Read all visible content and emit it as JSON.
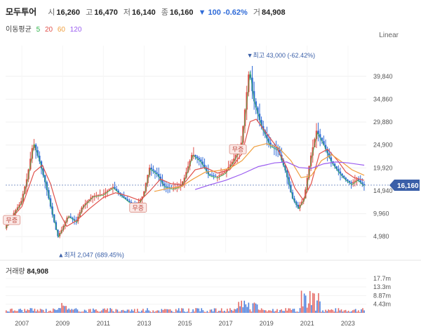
{
  "header": {
    "name": "모두투어",
    "open_label": "시",
    "open": "16,260",
    "high_label": "고",
    "high": "16,470",
    "low_label": "저",
    "low": "16,140",
    "close_label": "종",
    "close": "16,160",
    "change": "▼ 100 -0.62%",
    "volume_label": "거",
    "volume": "84,908"
  },
  "ma_legend": {
    "label": "이동평균",
    "periods": [
      {
        "text": "5",
        "color": "#2fb34a"
      },
      {
        "text": "20",
        "color": "#e0514b"
      },
      {
        "text": "60",
        "color": "#f0a040"
      },
      {
        "text": "120",
        "color": "#9a5cf0"
      }
    ]
  },
  "scale_label": "Linear",
  "volume_panel": {
    "label": "거래량",
    "value": "84,908"
  },
  "colors": {
    "up": "#e0514b",
    "down": "#2f6bd8",
    "ma5": "#2fb34a",
    "ma20": "#e0514b",
    "ma60": "#f0a040",
    "ma120": "#9a5cf0"
  },
  "chart_data": {
    "type": "candlestick",
    "price_axis": {
      "ticks": [
        "39,840",
        "34,860",
        "29,880",
        "24,900",
        "19,920",
        "14,940",
        "9,960",
        "4,980"
      ],
      "range": [
        1500,
        45000
      ]
    },
    "x_axis": {
      "ticks": [
        "2007",
        "2009",
        "2011",
        "2013",
        "2015",
        "2017",
        "2019",
        "2021",
        "2023"
      ],
      "range": [
        2006.2,
        2023.9
      ]
    },
    "current_price": "16,160",
    "annotations": {
      "high": {
        "text": "▼최고 43,000 (-62.42%)",
        "x": 2018.1,
        "y": 43000
      },
      "low": {
        "text": "▲최저 2,047 (689.45%)",
        "x": 2008.9,
        "y": 2047
      }
    },
    "markers": [
      {
        "text": "무증",
        "x": 2006.5,
        "y": 8500
      },
      {
        "text": "무증",
        "x": 2012.7,
        "y": 11200
      },
      {
        "text": "무증",
        "x": 2017.6,
        "y": 23900
      }
    ],
    "price_path": [
      [
        2006.2,
        6800
      ],
      [
        2006.6,
        9800
      ],
      [
        2007.0,
        12500
      ],
      [
        2007.3,
        17800
      ],
      [
        2007.6,
        25500
      ],
      [
        2007.9,
        21500
      ],
      [
        2008.2,
        16500
      ],
      [
        2008.5,
        10500
      ],
      [
        2008.8,
        5000
      ],
      [
        2009.0,
        6500
      ],
      [
        2009.3,
        9500
      ],
      [
        2009.7,
        8200
      ],
      [
        2010.0,
        11500
      ],
      [
        2010.5,
        13800
      ],
      [
        2011.0,
        14200
      ],
      [
        2011.5,
        15800
      ],
      [
        2011.9,
        14000
      ],
      [
        2012.3,
        12500
      ],
      [
        2012.7,
        12000
      ],
      [
        2013.0,
        14000
      ],
      [
        2013.3,
        20000
      ],
      [
        2013.7,
        18500
      ],
      [
        2014.0,
        16000
      ],
      [
        2014.4,
        15500
      ],
      [
        2014.8,
        16000
      ],
      [
        2015.0,
        17500
      ],
      [
        2015.4,
        23000
      ],
      [
        2015.8,
        21500
      ],
      [
        2016.2,
        18500
      ],
      [
        2016.6,
        18000
      ],
      [
        2017.0,
        19000
      ],
      [
        2017.4,
        21500
      ],
      [
        2017.8,
        25000
      ],
      [
        2018.0,
        33000
      ],
      [
        2018.2,
        41500
      ],
      [
        2018.4,
        35000
      ],
      [
        2018.8,
        29000
      ],
      [
        2019.2,
        25000
      ],
      [
        2019.6,
        24000
      ],
      [
        2020.0,
        19000
      ],
      [
        2020.3,
        13500
      ],
      [
        2020.6,
        11200
      ],
      [
        2020.9,
        13500
      ],
      [
        2021.2,
        22000
      ],
      [
        2021.5,
        28000
      ],
      [
        2021.8,
        25500
      ],
      [
        2022.2,
        21500
      ],
      [
        2022.6,
        19000
      ],
      [
        2022.9,
        17500
      ],
      [
        2023.2,
        16500
      ],
      [
        2023.5,
        17500
      ],
      [
        2023.8,
        16160
      ]
    ],
    "ma_paths": {
      "ma20": [
        [
          2006.3,
          8000
        ],
        [
          2007.0,
          11500
        ],
        [
          2007.6,
          19000
        ],
        [
          2008.0,
          20500
        ],
        [
          2008.4,
          16500
        ],
        [
          2008.8,
          10500
        ],
        [
          2009.2,
          7200
        ],
        [
          2009.7,
          8500
        ],
        [
          2010.3,
          11000
        ],
        [
          2011.0,
          13500
        ],
        [
          2011.6,
          14500
        ],
        [
          2012.2,
          13800
        ],
        [
          2012.8,
          12800
        ],
        [
          2013.3,
          15000
        ],
        [
          2013.8,
          17500
        ],
        [
          2014.3,
          16500
        ],
        [
          2014.9,
          16200
        ],
        [
          2015.5,
          19500
        ],
        [
          2016.0,
          20000
        ],
        [
          2016.6,
          18800
        ],
        [
          2017.2,
          19500
        ],
        [
          2017.8,
          23000
        ],
        [
          2018.2,
          30000
        ],
        [
          2018.5,
          30500
        ],
        [
          2019.0,
          27500
        ],
        [
          2019.5,
          24500
        ],
        [
          2020.0,
          20000
        ],
        [
          2020.4,
          15500
        ],
        [
          2020.8,
          13000
        ],
        [
          2021.2,
          16500
        ],
        [
          2021.6,
          23000
        ],
        [
          2022.0,
          24000
        ],
        [
          2022.5,
          21500
        ],
        [
          2022.9,
          19000
        ],
        [
          2023.3,
          17800
        ],
        [
          2023.8,
          17200
        ]
      ],
      "ma60": [
        [
          2013.5,
          14800
        ],
        [
          2014.2,
          15500
        ],
        [
          2014.8,
          15800
        ],
        [
          2015.4,
          17500
        ],
        [
          2016.0,
          19000
        ],
        [
          2016.6,
          19300
        ],
        [
          2017.2,
          19800
        ],
        [
          2017.8,
          21500
        ],
        [
          2018.4,
          24500
        ],
        [
          2019.0,
          25200
        ],
        [
          2019.6,
          24300
        ],
        [
          2020.2,
          21500
        ],
        [
          2020.7,
          17800
        ],
        [
          2021.2,
          18200
        ],
        [
          2021.7,
          21500
        ],
        [
          2022.2,
          22800
        ],
        [
          2022.7,
          21200
        ],
        [
          2023.2,
          19500
        ],
        [
          2023.8,
          18300
        ]
      ],
      "ma120": [
        [
          2015.5,
          15200
        ],
        [
          2016.2,
          16200
        ],
        [
          2017.0,
          17200
        ],
        [
          2017.8,
          18600
        ],
        [
          2018.6,
          20200
        ],
        [
          2019.4,
          21000
        ],
        [
          2020.0,
          21200
        ],
        [
          2020.6,
          20000
        ],
        [
          2021.2,
          19800
        ],
        [
          2021.8,
          20800
        ],
        [
          2022.4,
          21200
        ],
        [
          2023.0,
          21000
        ],
        [
          2023.8,
          20500
        ]
      ]
    },
    "volume_axis": {
      "ticks": [
        "17.7m",
        "13.3m",
        "8.87m",
        "4.43m"
      ],
      "values": [
        17.7,
        13.3,
        8.87,
        4.43
      ],
      "max": 19.5
    }
  }
}
